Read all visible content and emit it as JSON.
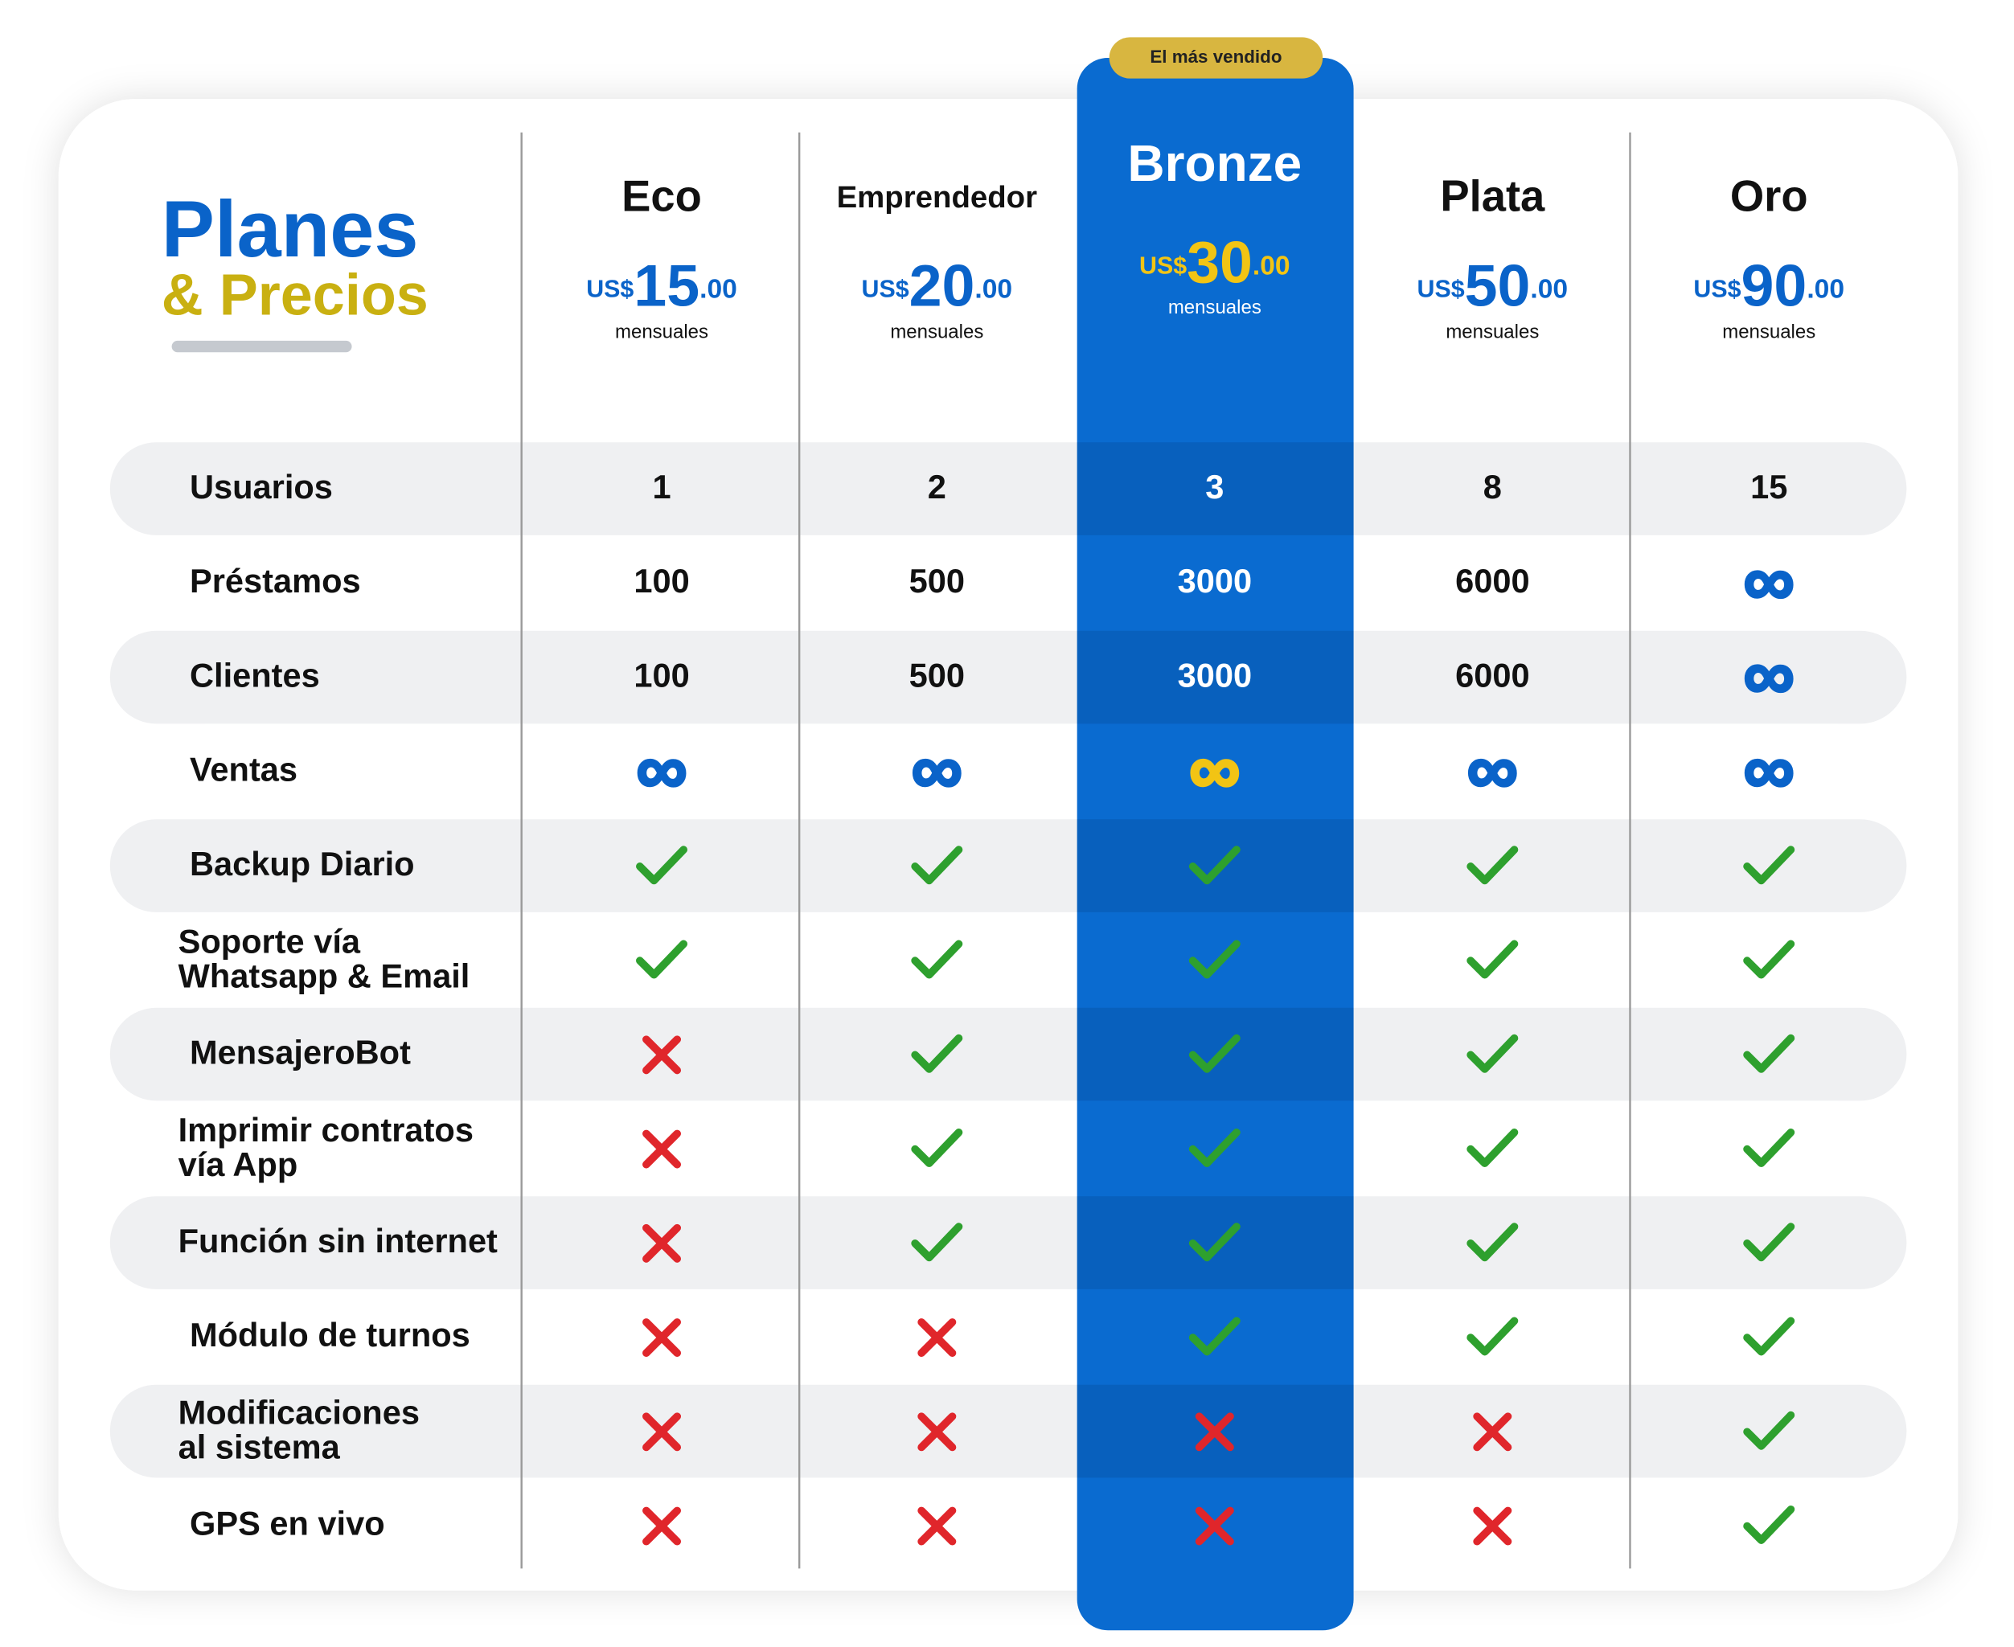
{
  "header": {
    "title": "Planes",
    "subtitle": "& Precios",
    "badge": "El más vendido"
  },
  "plans": [
    {
      "name": "Eco",
      "currency": "US$",
      "price": 15,
      "cents": ".00",
      "period": "mensuales"
    },
    {
      "name": "Emprendedor",
      "currency": "US$",
      "price": 20,
      "cents": ".00",
      "period": "mensuales"
    },
    {
      "name": "Bronze",
      "currency": "US$",
      "price": 30,
      "cents": ".00",
      "period": "mensuales"
    },
    {
      "name": "Plata",
      "currency": "US$",
      "price": 50,
      "cents": ".00",
      "period": "mensuales"
    },
    {
      "name": "Oro",
      "currency": "US$",
      "price": 90,
      "cents": ".00",
      "period": "mensuales"
    }
  ],
  "rows": [
    {
      "label": [
        "Usuarios"
      ],
      "values": [
        1,
        2,
        3,
        8,
        15
      ]
    },
    {
      "label": [
        "Préstamos"
      ],
      "values": [
        100,
        500,
        3000,
        6000,
        "∞"
      ]
    },
    {
      "label": [
        "Clientes"
      ],
      "values": [
        100,
        500,
        3000,
        6000,
        "∞"
      ]
    },
    {
      "label": [
        "Ventas"
      ],
      "values": [
        "∞",
        "∞",
        "∞",
        "∞",
        "∞"
      ]
    },
    {
      "label": [
        "Backup Diario"
      ],
      "values": [
        true,
        true,
        true,
        true,
        true
      ]
    },
    {
      "label": [
        "Soporte vía",
        "Whatsapp & Email"
      ],
      "values": [
        true,
        true,
        true,
        true,
        true
      ]
    },
    {
      "label": [
        "MensajeroBot"
      ],
      "values": [
        false,
        true,
        true,
        true,
        true
      ]
    },
    {
      "label": [
        "Imprimir contratos",
        "vía App"
      ],
      "values": [
        false,
        true,
        true,
        true,
        true
      ]
    },
    {
      "label": [
        "Función sin internet"
      ],
      "values": [
        false,
        true,
        true,
        true,
        true
      ]
    },
    {
      "label": [
        "Módulo de turnos"
      ],
      "values": [
        false,
        false,
        true,
        true,
        true
      ]
    },
    {
      "label": [
        "Modificaciones",
        "al sistema"
      ],
      "values": [
        false,
        false,
        false,
        false,
        true
      ]
    },
    {
      "label": [
        "GPS en vivo"
      ],
      "values": [
        false,
        false,
        false,
        false,
        true
      ]
    }
  ]
}
